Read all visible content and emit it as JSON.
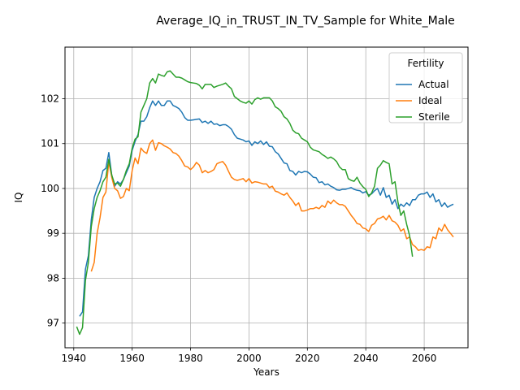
{
  "chart_data": {
    "type": "line",
    "title": "Average_IQ_in_TRUST_IN_TV_Sample for White_Male",
    "xlabel": "Years",
    "ylabel": "IQ",
    "xlim": [
      1937,
      2075
    ],
    "ylim": [
      96.45,
      103.15
    ],
    "xticks": [
      1940,
      1960,
      1980,
      2000,
      2020,
      2040,
      2060
    ],
    "yticks": [
      97,
      98,
      99,
      100,
      101,
      102
    ],
    "grid": true,
    "legend": {
      "title": "Fertility",
      "position": "top-right"
    },
    "colors": {
      "Actual": "#1f77b4",
      "Ideal": "#ff7f0e",
      "Sterile": "#2ca02c"
    },
    "series": [
      {
        "name": "Actual",
        "x": [
          1942,
          1943,
          1944,
          1945,
          1946,
          1947,
          1948,
          1949,
          1950,
          1951,
          1952,
          1953,
          1954,
          1955,
          1956,
          1957,
          1958,
          1959,
          1960,
          1961,
          1962,
          1963,
          1964,
          1965,
          1966,
          1967,
          1968,
          1969,
          1970,
          1971,
          1972,
          1973,
          1974,
          1975,
          1976,
          1977,
          1978,
          1979,
          1980,
          1981,
          1982,
          1983,
          1984,
          1985,
          1986,
          1987,
          1988,
          1989,
          1990,
          1991,
          1992,
          1993,
          1994,
          1995,
          1996,
          1997,
          1998,
          1999,
          2000,
          2001,
          2002,
          2003,
          2004,
          2005,
          2006,
          2007,
          2008,
          2009,
          2010,
          2011,
          2012,
          2013,
          2014,
          2015,
          2016,
          2017,
          2018,
          2019,
          2020,
          2021,
          2022,
          2023,
          2024,
          2025,
          2026,
          2027,
          2028,
          2029,
          2030,
          2031,
          2032,
          2033,
          2034,
          2035,
          2036,
          2037,
          2038,
          2039,
          2040,
          2041,
          2042,
          2043,
          2044,
          2045,
          2046,
          2047,
          2048,
          2049,
          2050,
          2051,
          2052,
          2053,
          2054,
          2055,
          2056,
          2057,
          2058,
          2059,
          2060,
          2061,
          2062,
          2063,
          2064,
          2065,
          2066,
          2067,
          2068,
          2069,
          2070
        ],
        "y": [
          97.15,
          97.25,
          98.2,
          98.5,
          99.3,
          99.8,
          100.0,
          100.15,
          100.4,
          100.45,
          100.8,
          100.3,
          100.05,
          100.15,
          100.1,
          100.2,
          100.35,
          100.5,
          100.85,
          101.05,
          101.2,
          101.5,
          101.5,
          101.6,
          101.8,
          101.95,
          101.85,
          101.95,
          101.85,
          101.85,
          101.95,
          101.95,
          101.85,
          101.82,
          101.78,
          101.7,
          101.58,
          101.52,
          101.52,
          101.53,
          101.54,
          101.55,
          101.47,
          101.5,
          101.45,
          101.5,
          101.43,
          101.44,
          101.4,
          101.42,
          101.42,
          101.38,
          101.32,
          101.2,
          101.12,
          101.1,
          101.08,
          101.04,
          101.06,
          100.96,
          101.04,
          101.0,
          101.06,
          100.98,
          101.04,
          100.94,
          100.93,
          100.82,
          100.77,
          100.67,
          100.57,
          100.55,
          100.4,
          100.38,
          100.3,
          100.38,
          100.35,
          100.38,
          100.37,
          100.32,
          100.25,
          100.24,
          100.13,
          100.15,
          100.08,
          100.1,
          100.05,
          100.02,
          99.97,
          99.96,
          99.98,
          99.98,
          100.0,
          100.02,
          99.98,
          99.96,
          99.95,
          99.9,
          99.93,
          99.85,
          99.88,
          99.95,
          100.0,
          99.85,
          100.02,
          99.8,
          99.85,
          99.65,
          99.75,
          99.55,
          99.65,
          99.6,
          99.68,
          99.62,
          99.75,
          99.75,
          99.85,
          99.88,
          99.88,
          99.92,
          99.8,
          99.88,
          99.7,
          99.75,
          99.6,
          99.68,
          99.58,
          99.62,
          99.65
        ]
      },
      {
        "name": "Ideal",
        "x": [
          1946,
          1947,
          1948,
          1949,
          1950,
          1951,
          1952,
          1953,
          1954,
          1955,
          1956,
          1957,
          1958,
          1959,
          1960,
          1961,
          1962,
          1963,
          1964,
          1965,
          1966,
          1967,
          1968,
          1969,
          1970,
          1971,
          1972,
          1973,
          1974,
          1975,
          1976,
          1977,
          1978,
          1979,
          1980,
          1981,
          1982,
          1983,
          1984,
          1985,
          1986,
          1987,
          1988,
          1989,
          1990,
          1991,
          1992,
          1993,
          1994,
          1995,
          1996,
          1997,
          1998,
          1999,
          2000,
          2001,
          2002,
          2003,
          2004,
          2005,
          2006,
          2007,
          2008,
          2009,
          2010,
          2011,
          2012,
          2013,
          2014,
          2015,
          2016,
          2017,
          2018,
          2019,
          2020,
          2021,
          2022,
          2023,
          2024,
          2025,
          2026,
          2027,
          2028,
          2029,
          2030,
          2031,
          2032,
          2033,
          2034,
          2035,
          2036,
          2037,
          2038,
          2039,
          2040,
          2041,
          2042,
          2043,
          2044,
          2045,
          2046,
          2047,
          2048,
          2049,
          2050,
          2051,
          2052,
          2053,
          2054,
          2055,
          2056,
          2057,
          2058,
          2059,
          2060,
          2061,
          2062,
          2063,
          2064,
          2065,
          2066,
          2067,
          2068,
          2069,
          2070
        ],
        "y": [
          98.15,
          98.35,
          99.0,
          99.35,
          99.8,
          99.92,
          100.6,
          100.25,
          100.0,
          99.95,
          99.78,
          99.82,
          100.0,
          99.95,
          100.4,
          100.68,
          100.55,
          100.9,
          100.82,
          100.78,
          101.0,
          101.08,
          100.85,
          101.02,
          101.0,
          100.95,
          100.92,
          100.88,
          100.8,
          100.78,
          100.72,
          100.62,
          100.5,
          100.48,
          100.42,
          100.48,
          100.58,
          100.52,
          100.35,
          100.4,
          100.35,
          100.38,
          100.42,
          100.55,
          100.58,
          100.6,
          100.52,
          100.38,
          100.25,
          100.2,
          100.18,
          100.2,
          100.22,
          100.15,
          100.22,
          100.12,
          100.15,
          100.14,
          100.12,
          100.1,
          100.1,
          100.02,
          100.05,
          99.94,
          99.92,
          99.88,
          99.85,
          99.9,
          99.8,
          99.72,
          99.62,
          99.68,
          99.5,
          99.5,
          99.52,
          99.55,
          99.55,
          99.58,
          99.55,
          99.62,
          99.58,
          99.72,
          99.66,
          99.74,
          99.68,
          99.64,
          99.64,
          99.6,
          99.5,
          99.4,
          99.32,
          99.22,
          99.2,
          99.12,
          99.1,
          99.04,
          99.18,
          99.22,
          99.32,
          99.34,
          99.38,
          99.3,
          99.4,
          99.28,
          99.25,
          99.18,
          99.05,
          99.1,
          98.88,
          98.92,
          98.75,
          98.7,
          98.62,
          98.64,
          98.62,
          98.7,
          98.68,
          98.92,
          98.88,
          99.12,
          99.05,
          99.2,
          99.08,
          99.0,
          98.92
        ]
      },
      {
        "name": "Sterile",
        "x": [
          1941,
          1942,
          1943,
          1944,
          1945,
          1946,
          1947,
          1948,
          1949,
          1950,
          1951,
          1952,
          1953,
          1954,
          1955,
          1956,
          1957,
          1958,
          1959,
          1960,
          1961,
          1962,
          1963,
          1964,
          1965,
          1966,
          1967,
          1968,
          1969,
          1970,
          1971,
          1972,
          1973,
          1974,
          1975,
          1976,
          1977,
          1978,
          1979,
          1980,
          1981,
          1982,
          1983,
          1984,
          1985,
          1986,
          1987,
          1988,
          1989,
          1990,
          1991,
          1992,
          1993,
          1994,
          1995,
          1996,
          1997,
          1998,
          1999,
          2000,
          2001,
          2002,
          2003,
          2004,
          2005,
          2006,
          2007,
          2008,
          2009,
          2010,
          2011,
          2012,
          2013,
          2014,
          2015,
          2016,
          2017,
          2018,
          2019,
          2020,
          2021,
          2022,
          2023,
          2024,
          2025,
          2026,
          2027,
          2028,
          2029,
          2030,
          2031,
          2032,
          2033,
          2034,
          2035,
          2036,
          2037,
          2038,
          2039,
          2040,
          2041,
          2042,
          2043,
          2044,
          2045,
          2046,
          2047,
          2048,
          2049,
          2050,
          2051,
          2052,
          2053,
          2054,
          2055,
          2056
        ],
        "y": [
          96.92,
          96.75,
          96.9,
          97.95,
          98.35,
          99.15,
          99.55,
          99.8,
          99.95,
          100.15,
          100.25,
          100.65,
          100.3,
          100.1,
          100.12,
          100.05,
          100.2,
          100.4,
          100.55,
          100.9,
          101.1,
          101.15,
          101.7,
          101.85,
          102.0,
          102.35,
          102.45,
          102.35,
          102.55,
          102.52,
          102.5,
          102.6,
          102.62,
          102.55,
          102.48,
          102.48,
          102.46,
          102.42,
          102.38,
          102.36,
          102.35,
          102.34,
          102.3,
          102.22,
          102.32,
          102.32,
          102.32,
          102.25,
          102.28,
          102.3,
          102.32,
          102.35,
          102.28,
          102.22,
          102.05,
          102.0,
          101.95,
          101.92,
          101.9,
          101.95,
          101.88,
          101.98,
          102.02,
          101.99,
          102.02,
          102.02,
          102.02,
          101.95,
          101.82,
          101.78,
          101.72,
          101.6,
          101.55,
          101.45,
          101.3,
          101.24,
          101.22,
          101.12,
          101.08,
          101.04,
          100.92,
          100.86,
          100.84,
          100.82,
          100.76,
          100.72,
          100.67,
          100.7,
          100.66,
          100.6,
          100.48,
          100.42,
          100.42,
          100.22,
          100.18,
          100.16,
          100.25,
          100.12,
          100.04,
          99.98,
          99.82,
          99.9,
          100.05,
          100.45,
          100.52,
          100.62,
          100.58,
          100.55,
          100.1,
          100.15,
          99.7,
          99.4,
          99.5,
          99.2,
          98.95,
          98.48
        ]
      }
    ]
  }
}
